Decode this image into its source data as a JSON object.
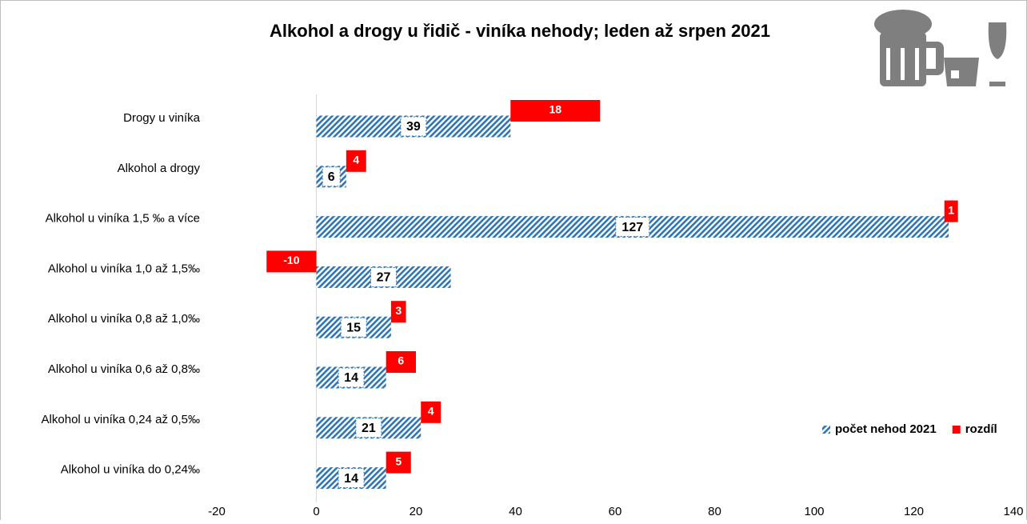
{
  "chart_data": {
    "type": "bar",
    "orientation": "horizontal",
    "stacked": true,
    "title": "Alkohol a drogy u řidič - viníka nehody; leden až srpen  2021",
    "categories": [
      "Drogy u viníka",
      "Alkohol a drogy",
      "Alkohol u viníka 1,5 ‰ a více",
      "Alkohol u viníka 1,0 až 1,5‰",
      "Alkohol u viníka  0,8 až 1,0‰",
      "Alkohol u viníka  0,6 až 0,8‰",
      "Alkohol u viníka  0,24 až 0,5‰",
      "Alkohol u viníka do 0,24‰"
    ],
    "series": [
      {
        "name": "počet nehod 2021",
        "color": "#2e75b6",
        "values": [
          39,
          6,
          127,
          27,
          15,
          14,
          21,
          14
        ]
      },
      {
        "name": "rozdíl",
        "color": "#ff0000",
        "values": [
          18,
          4,
          1,
          -10,
          3,
          6,
          4,
          5
        ]
      }
    ],
    "xlim": [
      -20,
      140
    ],
    "xticks": [
      -20,
      0,
      20,
      40,
      60,
      80,
      100,
      120,
      140
    ],
    "legend": "bottom-right"
  }
}
